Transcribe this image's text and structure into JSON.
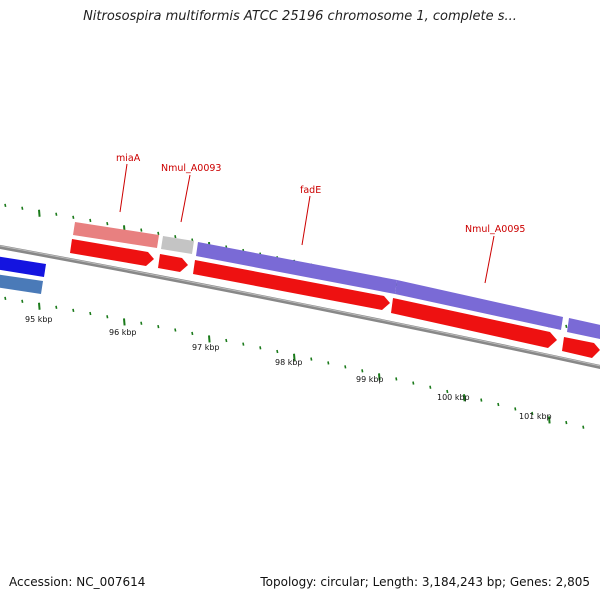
{
  "title": "Nitrosospira multiformis ATCC 25196 chromosome 1, complete s...",
  "footer": {
    "accession": "Accession: NC_007614",
    "summary": "Topology: circular; Length: 3,184,243 bp; Genes: 2,805"
  },
  "colors": {
    "backbone": "#888888",
    "tick": "#1a7a1a",
    "cds": "#ee1111",
    "label": "#cc0000",
    "gene_purple": "#7a6ad6",
    "gene_pink": "#e88080",
    "gene_grey": "#c4c4c4",
    "gene_blue": "#1414e0",
    "gene_steel": "#4a7ab8"
  },
  "scale_labels": [
    {
      "kbp": 95,
      "text": "95 kbp"
    },
    {
      "kbp": 96,
      "text": "96 kbp"
    },
    {
      "kbp": 97,
      "text": "97 kbp"
    },
    {
      "kbp": 98,
      "text": "98 kbp"
    },
    {
      "kbp": 99,
      "text": "99 kbp"
    },
    {
      "kbp": 100,
      "text": "100 kbp"
    },
    {
      "kbp": 101,
      "text": "101 kbp"
    }
  ],
  "gene_labels": [
    {
      "name": "miaA",
      "text": "miaA"
    },
    {
      "name": "nmul-a0093",
      "text": "Nmul_A0093"
    },
    {
      "name": "fade",
      "text": "fadE"
    },
    {
      "name": "nmul-a0095",
      "text": "Nmul_A0095"
    }
  ]
}
